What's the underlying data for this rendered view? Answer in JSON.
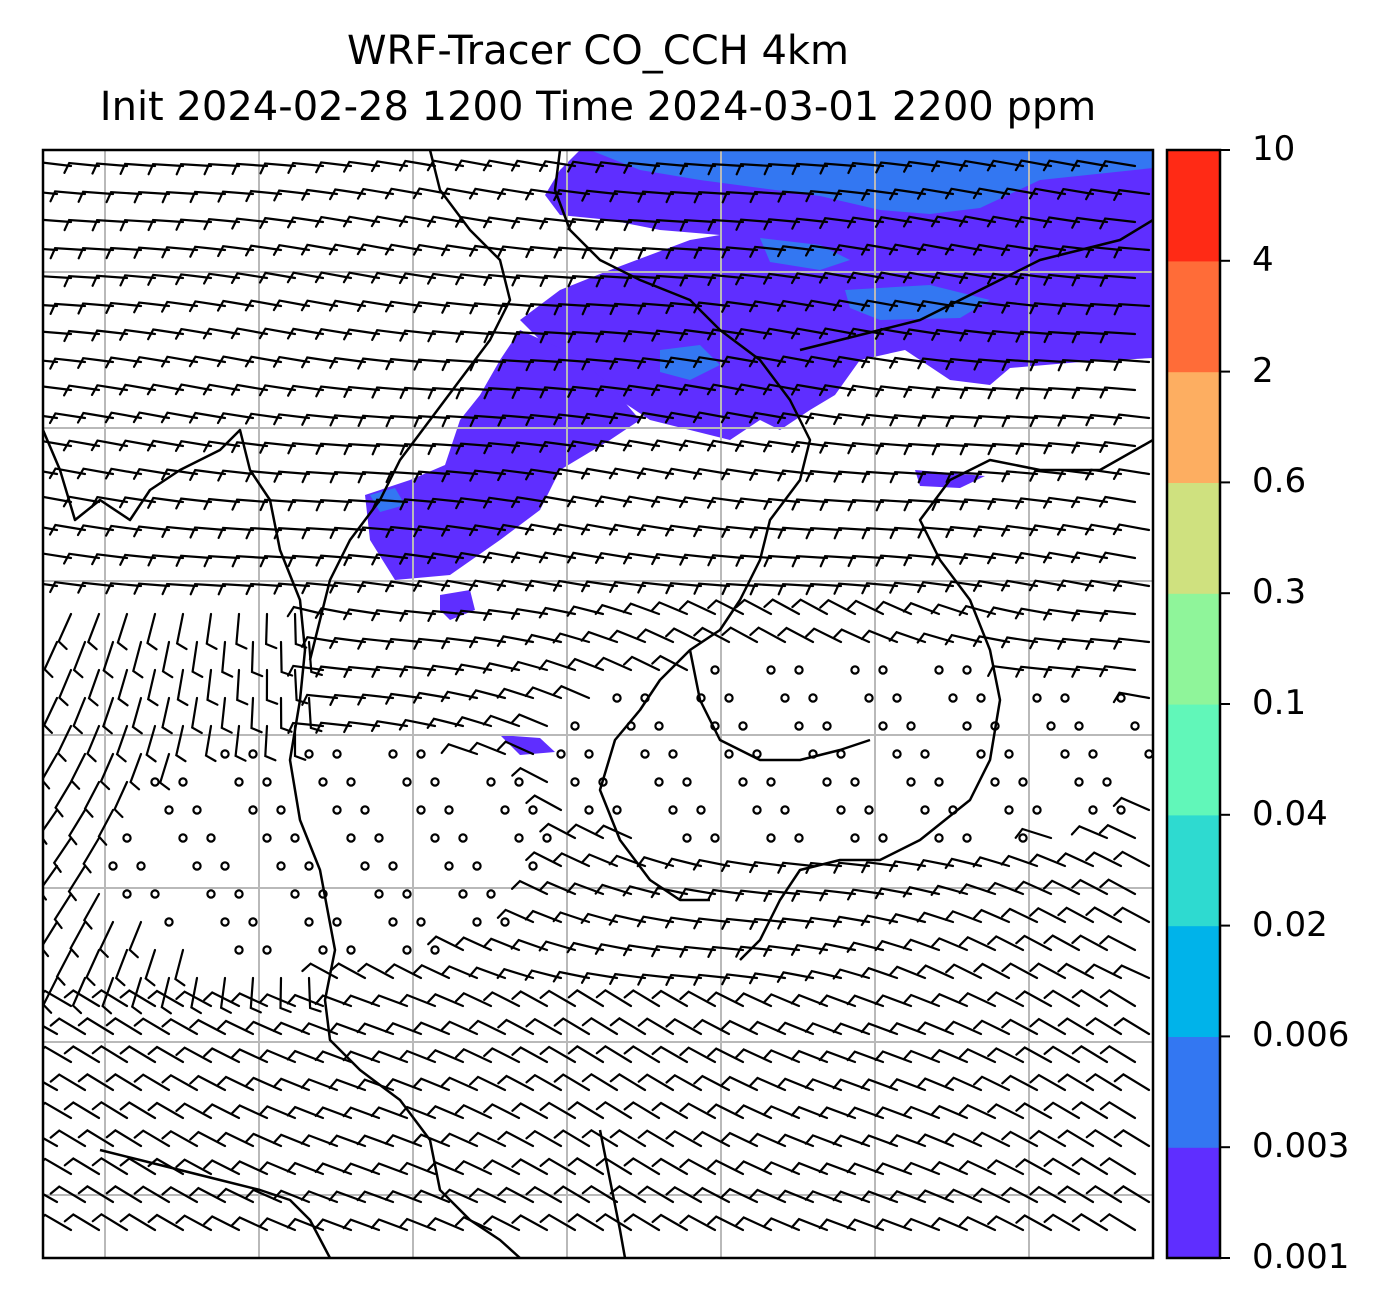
{
  "title": {
    "line1": "WRF-Tracer CO_CCH 4km",
    "line2": "Init 2024-02-28 1200 Time 2024-03-01 2200 ppm"
  },
  "colorbar": {
    "levels": [
      "0.001",
      "0.003",
      "0.006",
      "0.02",
      "0.04",
      "0.1",
      "0.3",
      "0.6",
      "2",
      "4",
      "10"
    ],
    "colors": [
      "#5f2eff",
      "#3377f2",
      "#00b3ea",
      "#2edad0",
      "#61f7b9",
      "#8ff59a",
      "#cfe17f",
      "#fdae61",
      "#ff6c38",
      "#ff2a15"
    ]
  },
  "map": {
    "gridlines": true,
    "gridline_color": "#b9b9b9",
    "overlay": "wind barbs",
    "coastline_color": "#000000"
  }
}
